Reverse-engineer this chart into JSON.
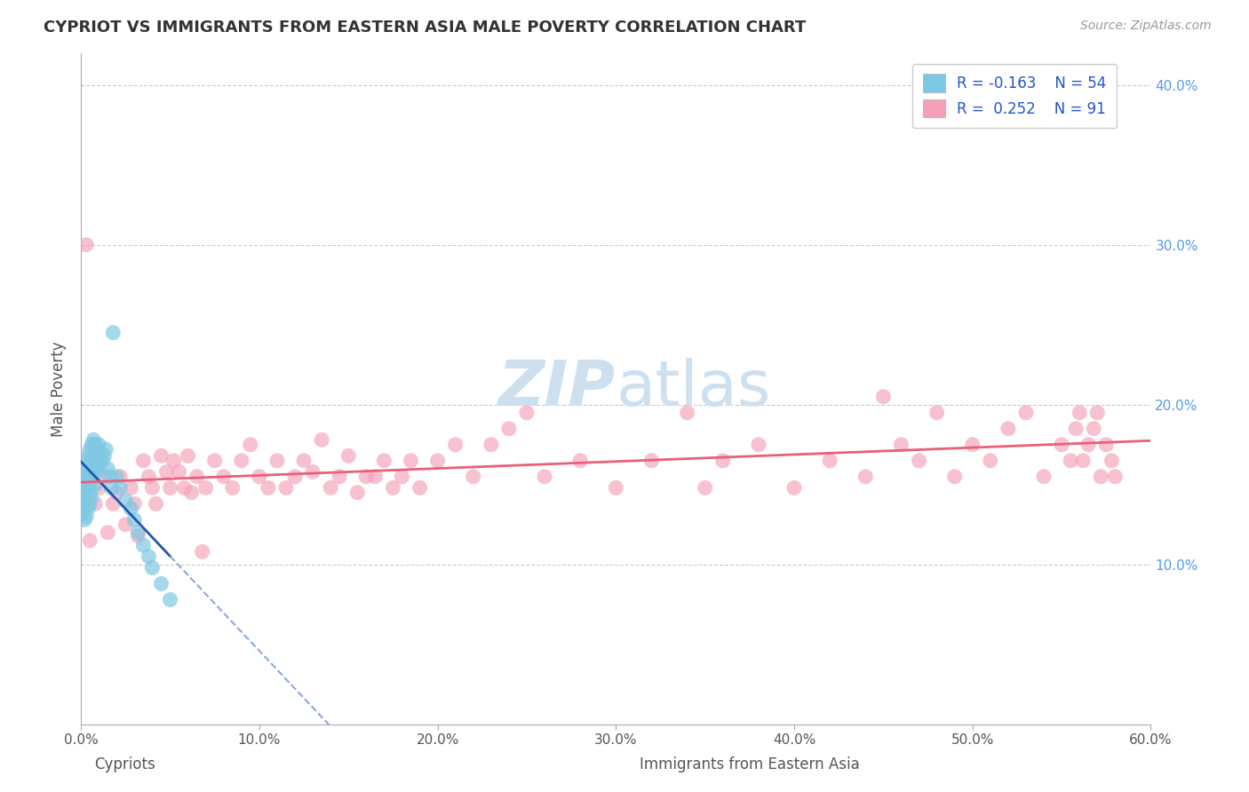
{
  "title": "CYPRIOT VS IMMIGRANTS FROM EASTERN ASIA MALE POVERTY CORRELATION CHART",
  "source_text": "Source: ZipAtlas.com",
  "xlabel_cypriot": "Cypriots",
  "xlabel_immigrant": "Immigrants from Eastern Asia",
  "ylabel": "Male Poverty",
  "xlim": [
    0.0,
    0.6
  ],
  "ylim": [
    0.0,
    0.42
  ],
  "xticks": [
    0.0,
    0.1,
    0.2,
    0.3,
    0.4,
    0.5,
    0.6
  ],
  "yticks": [
    0.1,
    0.2,
    0.3,
    0.4
  ],
  "xtick_labels": [
    "0.0%",
    "10.0%",
    "20.0%",
    "30.0%",
    "40.0%",
    "50.0%",
    "60.0%"
  ],
  "ytick_labels_right": [
    "10.0%",
    "20.0%",
    "30.0%",
    "40.0%"
  ],
  "legend_r1": "R = -0.163",
  "legend_n1": "N = 54",
  "legend_r2": "R =  0.252",
  "legend_n2": "N = 91",
  "color_cypriot": "#7ec8e3",
  "color_immigrant": "#f4a0b8",
  "color_trendline_cypriot": "#2255aa",
  "color_trendline_cypriot_dashed": "#8aaad8",
  "color_trendline_immigrant": "#e8607a",
  "watermark_color": "#cde0f0",
  "background_color": "#ffffff",
  "grid_color": "#cccccc",
  "cypriot_x": [
    0.001,
    0.001,
    0.001,
    0.001,
    0.002,
    0.002,
    0.002,
    0.002,
    0.003,
    0.003,
    0.003,
    0.003,
    0.004,
    0.004,
    0.004,
    0.004,
    0.005,
    0.005,
    0.005,
    0.005,
    0.005,
    0.006,
    0.006,
    0.006,
    0.006,
    0.007,
    0.007,
    0.007,
    0.008,
    0.008,
    0.008,
    0.009,
    0.009,
    0.01,
    0.01,
    0.011,
    0.012,
    0.013,
    0.014,
    0.015,
    0.016,
    0.017,
    0.018,
    0.02,
    0.022,
    0.025,
    0.028,
    0.03,
    0.032,
    0.035,
    0.038,
    0.04,
    0.045,
    0.05
  ],
  "cypriot_y": [
    0.155,
    0.148,
    0.14,
    0.132,
    0.158,
    0.148,
    0.138,
    0.128,
    0.165,
    0.155,
    0.145,
    0.13,
    0.168,
    0.158,
    0.148,
    0.135,
    0.172,
    0.162,
    0.152,
    0.145,
    0.138,
    0.175,
    0.165,
    0.155,
    0.142,
    0.178,
    0.168,
    0.158,
    0.175,
    0.162,
    0.15,
    0.17,
    0.158,
    0.175,
    0.162,
    0.17,
    0.165,
    0.168,
    0.172,
    0.16,
    0.155,
    0.148,
    0.245,
    0.155,
    0.148,
    0.14,
    0.135,
    0.128,
    0.12,
    0.112,
    0.105,
    0.098,
    0.088,
    0.078
  ],
  "immigrant_x": [
    0.003,
    0.005,
    0.008,
    0.01,
    0.012,
    0.015,
    0.018,
    0.02,
    0.022,
    0.025,
    0.028,
    0.03,
    0.032,
    0.035,
    0.038,
    0.04,
    0.042,
    0.045,
    0.048,
    0.05,
    0.052,
    0.055,
    0.058,
    0.06,
    0.062,
    0.065,
    0.068,
    0.07,
    0.075,
    0.08,
    0.085,
    0.09,
    0.095,
    0.1,
    0.105,
    0.11,
    0.115,
    0.12,
    0.125,
    0.13,
    0.135,
    0.14,
    0.145,
    0.15,
    0.155,
    0.16,
    0.165,
    0.17,
    0.175,
    0.18,
    0.185,
    0.19,
    0.2,
    0.21,
    0.22,
    0.23,
    0.24,
    0.25,
    0.26,
    0.28,
    0.3,
    0.32,
    0.34,
    0.35,
    0.36,
    0.38,
    0.4,
    0.42,
    0.44,
    0.45,
    0.46,
    0.47,
    0.48,
    0.49,
    0.5,
    0.51,
    0.52,
    0.53,
    0.54,
    0.55,
    0.555,
    0.558,
    0.56,
    0.562,
    0.565,
    0.568,
    0.57,
    0.572,
    0.575,
    0.578,
    0.58
  ],
  "immigrant_y": [
    0.3,
    0.115,
    0.138,
    0.148,
    0.155,
    0.12,
    0.138,
    0.145,
    0.155,
    0.125,
    0.148,
    0.138,
    0.118,
    0.165,
    0.155,
    0.148,
    0.138,
    0.168,
    0.158,
    0.148,
    0.165,
    0.158,
    0.148,
    0.168,
    0.145,
    0.155,
    0.108,
    0.148,
    0.165,
    0.155,
    0.148,
    0.165,
    0.175,
    0.155,
    0.148,
    0.165,
    0.148,
    0.155,
    0.165,
    0.158,
    0.178,
    0.148,
    0.155,
    0.168,
    0.145,
    0.155,
    0.155,
    0.165,
    0.148,
    0.155,
    0.165,
    0.148,
    0.165,
    0.175,
    0.155,
    0.175,
    0.185,
    0.195,
    0.155,
    0.165,
    0.148,
    0.165,
    0.195,
    0.148,
    0.165,
    0.175,
    0.148,
    0.165,
    0.155,
    0.205,
    0.175,
    0.165,
    0.195,
    0.155,
    0.175,
    0.165,
    0.185,
    0.195,
    0.155,
    0.175,
    0.165,
    0.185,
    0.195,
    0.165,
    0.175,
    0.185,
    0.195,
    0.155,
    0.175,
    0.165,
    0.155
  ]
}
